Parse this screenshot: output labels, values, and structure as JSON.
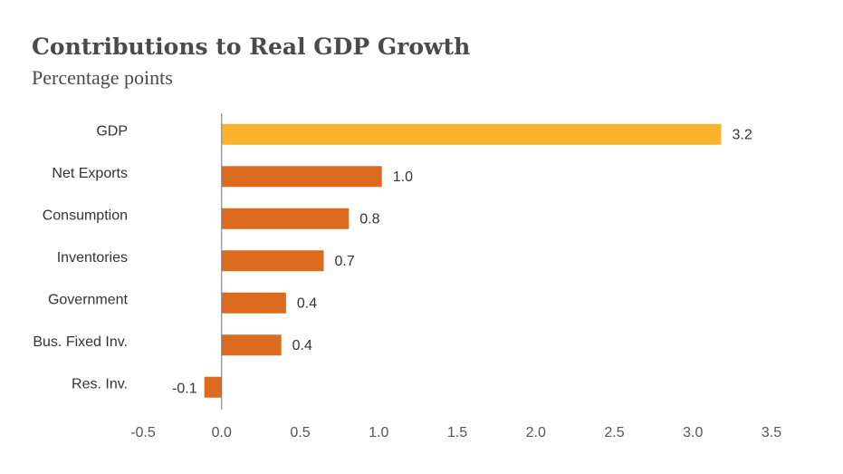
{
  "chart_data": {
    "type": "bar",
    "orientation": "horizontal",
    "title": "Contributions to Real GDP Growth",
    "subtitle": "Percentage points",
    "categories": [
      "GDP",
      "Net Exports",
      "Consumption",
      "Inventories",
      "Government",
      "Bus. Fixed Inv.",
      "Res. Inv."
    ],
    "values": [
      3.2,
      1.0,
      0.8,
      0.7,
      0.4,
      0.4,
      -0.1
    ],
    "value_labels": [
      "3.2",
      "1.0",
      "0.8",
      "0.7",
      "0.4",
      "0.4",
      "-0.1"
    ],
    "bar_values": [
      3.18,
      1.02,
      0.81,
      0.65,
      0.41,
      0.38,
      -0.11
    ],
    "xlim": [
      -0.5,
      3.5
    ],
    "xticks": [
      -0.5,
      0.0,
      0.5,
      1.0,
      1.5,
      2.0,
      2.5,
      3.0,
      3.5
    ],
    "xtick_labels": [
      "-0.5",
      "0.0",
      "0.5",
      "1.0",
      "1.5",
      "2.0",
      "2.5",
      "3.0",
      "3.5"
    ],
    "grid": false,
    "legend": "none",
    "colors": {
      "highlight": "#fbb32e",
      "bar": "#dc6b1f",
      "axis": "#777777"
    }
  }
}
